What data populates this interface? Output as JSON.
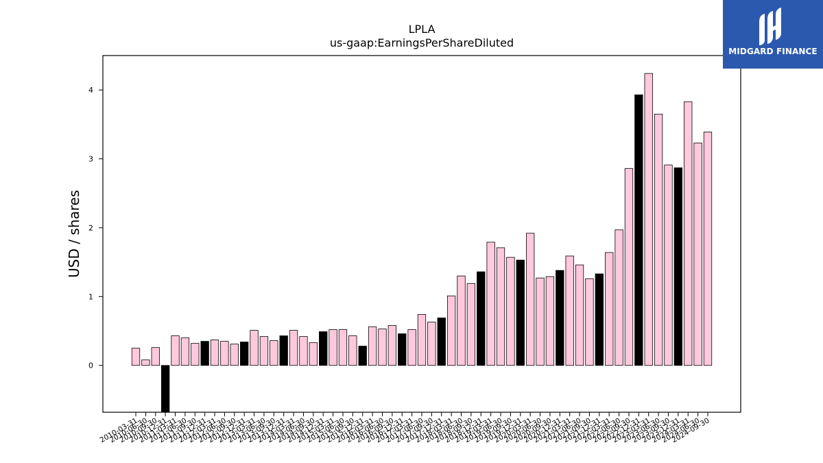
{
  "chart_data": {
    "type": "bar",
    "title": "LPLA",
    "subtitle": "us-gaap:EarningsPerShareDiluted",
    "ylabel": "USD / shares",
    "xlabel": "",
    "ylim": [
      -0.68,
      4.5
    ],
    "yticks": [
      0,
      1,
      2,
      3,
      4
    ],
    "colors": {
      "quarterly": "#ffc8dd",
      "annual": "#000000",
      "edge": "#000000"
    },
    "categories": [
      "2010-03-31",
      "2010-06-30",
      "2010-09-30",
      "2010-12-31",
      "2011-03-31",
      "2011-06-30",
      "2011-09-30",
      "2011-12-31",
      "2012-03-31",
      "2012-06-30",
      "2012-09-30",
      "2012-12-31",
      "2013-03-31",
      "2013-06-30",
      "2013-09-30",
      "2013-12-31",
      "2014-03-31",
      "2014-06-30",
      "2014-09-30",
      "2014-12-31",
      "2015-03-31",
      "2015-06-30",
      "2015-09-30",
      "2015-12-31",
      "2016-03-31",
      "2016-06-30",
      "2016-09-30",
      "2016-12-31",
      "2017-03-31",
      "2017-06-30",
      "2017-09-30",
      "2017-12-31",
      "2018-03-31",
      "2018-06-30",
      "2018-09-30",
      "2018-12-31",
      "2019-03-31",
      "2019-06-30",
      "2019-09-30",
      "2019-12-31",
      "2020-03-31",
      "2020-06-30",
      "2020-09-30",
      "2020-12-31",
      "2021-03-31",
      "2021-06-30",
      "2021-09-30",
      "2021-12-31",
      "2022-03-31",
      "2022-06-30",
      "2022-09-30",
      "2022-12-31",
      "2023-03-31",
      "2023-06-30",
      "2023-09-30",
      "2023-12-31",
      "2024-03-31",
      "2024-06-30",
      "2024-09-30"
    ],
    "values": [
      0.25,
      0.08,
      0.26,
      -0.75,
      0.43,
      0.4,
      0.32,
      0.35,
      0.37,
      0.35,
      0.31,
      0.34,
      0.51,
      0.42,
      0.36,
      0.43,
      0.51,
      0.42,
      0.33,
      0.49,
      0.52,
      0.52,
      0.43,
      0.28,
      0.56,
      0.53,
      0.58,
      0.46,
      0.52,
      0.74,
      0.63,
      0.69,
      1.01,
      1.3,
      1.19,
      1.36,
      1.79,
      1.71,
      1.57,
      1.53,
      1.92,
      1.27,
      1.29,
      1.38,
      1.59,
      1.46,
      1.26,
      1.33,
      1.64,
      1.97,
      2.86,
      3.93,
      4.24,
      3.65,
      2.91,
      2.87,
      3.83,
      3.23,
      3.39
    ],
    "annual_flags": [
      0,
      0,
      0,
      1,
      0,
      0,
      0,
      1,
      0,
      0,
      0,
      1,
      0,
      0,
      0,
      1,
      0,
      0,
      0,
      1,
      0,
      0,
      0,
      1,
      0,
      0,
      0,
      1,
      0,
      0,
      0,
      1,
      0,
      0,
      0,
      1,
      0,
      0,
      0,
      1,
      0,
      0,
      0,
      1,
      0,
      0,
      0,
      1,
      0,
      0,
      0,
      1,
      0,
      0,
      0,
      1,
      0,
      0,
      0
    ]
  },
  "logo": {
    "text": "MIDGARD FINANCE",
    "background": "#2b59ae"
  }
}
